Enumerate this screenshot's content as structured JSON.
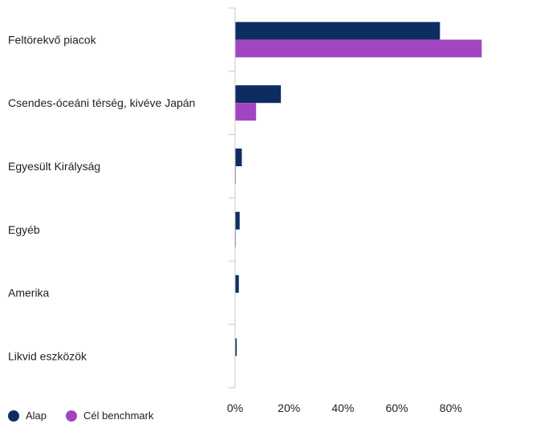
{
  "chart_data": {
    "type": "bar",
    "orientation": "horizontal",
    "categories": [
      "Feltörekvő piacok",
      "Csendes-óceáni térség, kivéve Japán",
      "Egyesült Királyság",
      "Egyéb",
      "Amerika",
      "Likvid eszközök"
    ],
    "series": [
      {
        "name": "Alap",
        "color": "#0d2d62",
        "values": [
          76.0,
          17.0,
          2.5,
          1.7,
          1.4,
          0.6
        ]
      },
      {
        "name": "Cél benchmark",
        "color": "#a245c0",
        "values": [
          91.5,
          7.8,
          0.3,
          0.3,
          0,
          0
        ]
      }
    ],
    "xlim": [
      0,
      100
    ],
    "xticks": [
      0,
      20,
      40,
      60,
      80
    ],
    "tick_suffix": "%",
    "legend_position": "bottom-left"
  }
}
